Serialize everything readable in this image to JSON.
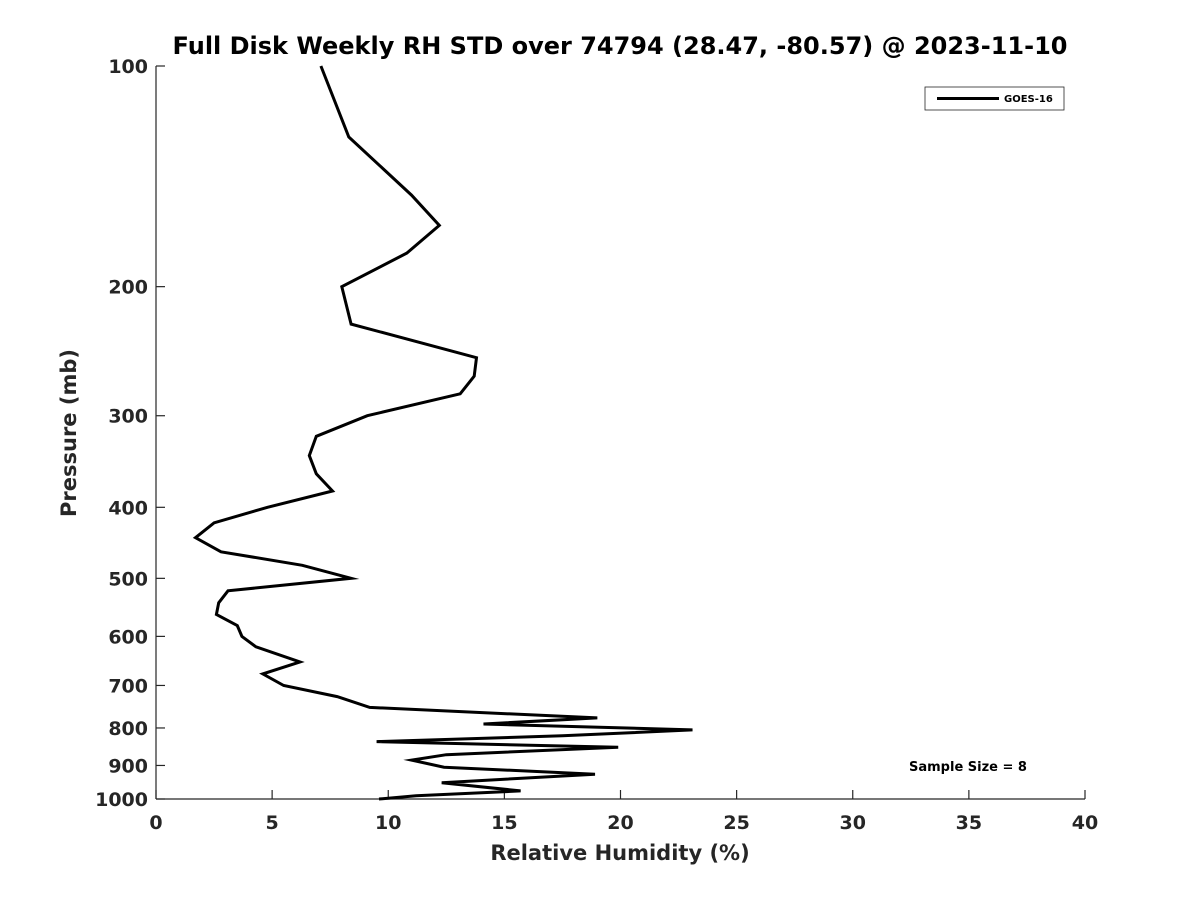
{
  "chart_data": {
    "type": "line",
    "title": "Full Disk Weekly RH STD over 74794 (28.47, -80.57) @ 2023-11-10",
    "xlabel": "Relative Humidity (%)",
    "ylabel": "Pressure (mb)",
    "xlim": [
      0,
      40
    ],
    "ylim": [
      100,
      1000
    ],
    "y_scale": "log",
    "y_reversed": true,
    "x_ticks": [
      0,
      5,
      10,
      15,
      20,
      25,
      30,
      35,
      40
    ],
    "y_ticks": [
      100,
      200,
      300,
      400,
      500,
      600,
      700,
      800,
      900,
      1000
    ],
    "grid": false,
    "legend_position": "top-right",
    "annotation": "Sample Size = 8",
    "series": [
      {
        "name": "GOES-16",
        "color": "#000000",
        "x": [
          7.1,
          8.3,
          11.0,
          12.2,
          10.8,
          8.0,
          8.4,
          13.8,
          13.7,
          13.1,
          9.1,
          6.9,
          6.6,
          6.9,
          7.6,
          4.8,
          2.5,
          1.7,
          2.8,
          6.3,
          8.4,
          3.1,
          2.7,
          2.6,
          3.5,
          3.7,
          4.3,
          6.2,
          4.6,
          5.5,
          7.8,
          9.2,
          19.0,
          14.1,
          23.1,
          17.5,
          9.5,
          19.9,
          12.5,
          11.0,
          12.4,
          18.9,
          12.3,
          15.7,
          11.2,
          9.6
        ],
        "y": [
          100,
          125,
          150,
          165,
          180,
          200,
          225,
          250,
          265,
          280,
          300,
          320,
          340,
          360,
          380,
          400,
          420,
          440,
          460,
          480,
          500,
          520,
          540,
          560,
          580,
          600,
          620,
          650,
          675,
          700,
          725,
          750,
          775,
          790,
          805,
          820,
          835,
          850,
          870,
          885,
          905,
          925,
          950,
          975,
          990,
          1000
        ]
      }
    ]
  }
}
